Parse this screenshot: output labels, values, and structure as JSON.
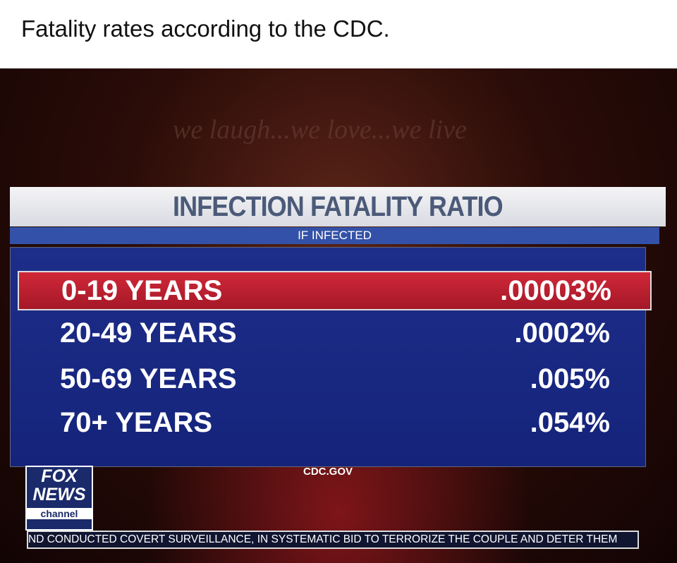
{
  "post": {
    "caption": "Fatality rates according to the CDC."
  },
  "screen": {
    "background_text": "we laugh...we love...we live",
    "graphic": {
      "title": "INFECTION FATALITY RATIO",
      "subtitle": "IF INFECTED",
      "table": {
        "rows": [
          [
            "0-19 YEARS",
            ".00003%"
          ],
          [
            "20-49 YEARS",
            ".0002%"
          ],
          [
            "50-69 YEARS",
            ".005%"
          ],
          [
            "70+ YEARS",
            ".054%"
          ]
        ]
      },
      "source": "CDC.GOV"
    },
    "logo": {
      "line1": "FOX",
      "line2": "NEWS",
      "line3": "channel"
    },
    "ticker": "ND CONDUCTED COVERT SURVEILLANCE, IN SYSTEMATIC BID TO TERRORIZE THE COUPLE AND DETER THEM"
  }
}
